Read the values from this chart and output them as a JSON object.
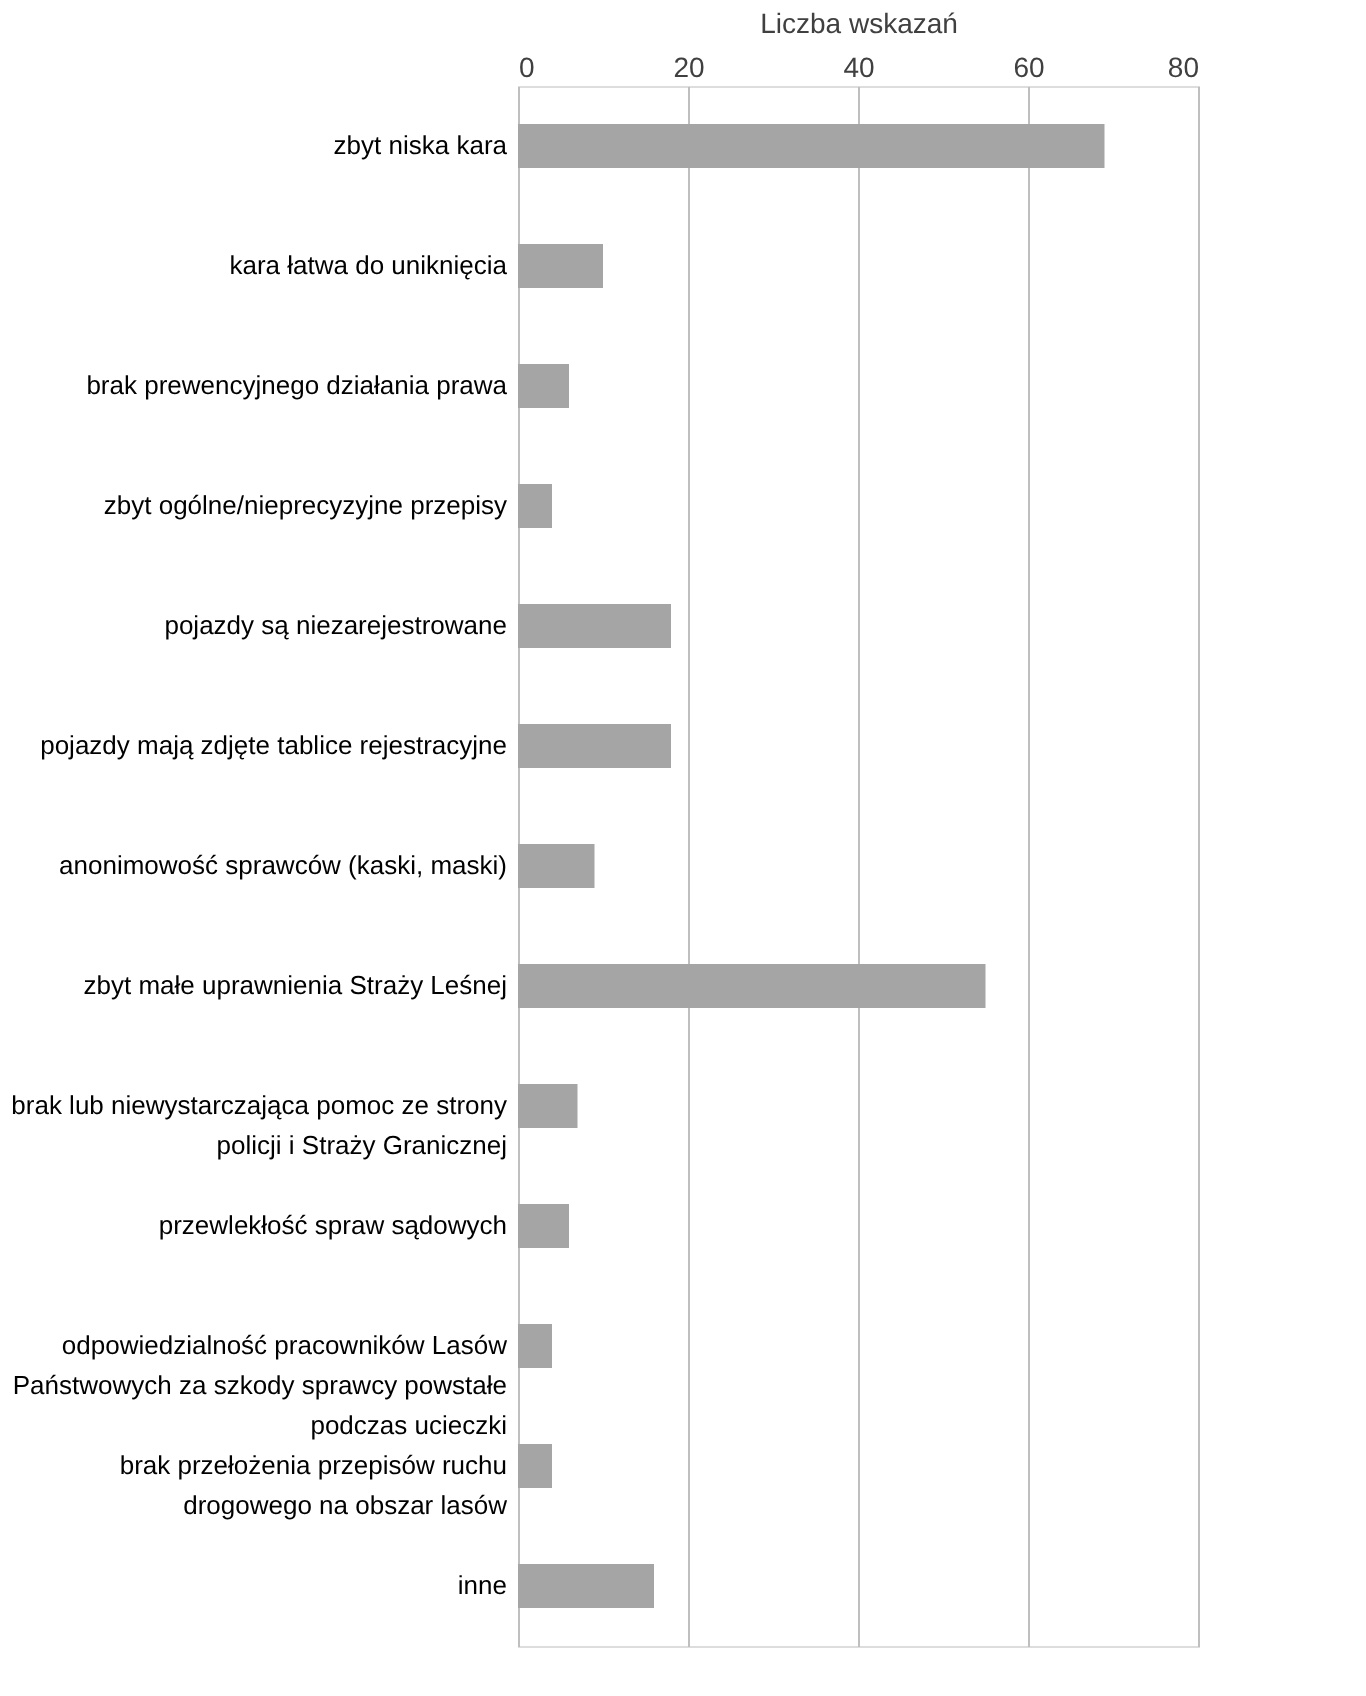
{
  "chart_data": {
    "type": "bar",
    "orientation": "horizontal",
    "xlabel": "Liczba wskazań",
    "categories": [
      "zbyt niska kara",
      "kara łatwa do uniknięcia",
      "brak prewencyjnego działania prawa",
      "zbyt ogólne/nieprecyzyjne przepisy",
      "pojazdy są niezarejestrowane",
      "pojazdy mają zdjęte tablice rejestracyjne",
      "anonimowość sprawców (kaski, maski)",
      "zbyt małe uprawnienia Straży Leśnej",
      "brak lub niewystarczająca pomoc ze strony policji i Straży Granicznej",
      "przewlekłość spraw sądowych",
      "odpowiedzialność pracowników Lasów Państwowych za szkody sprawcy powstałe podczas ucieczki",
      "brak przełożenia przepisów ruchu drogowego na obszar lasów",
      "inne"
    ],
    "values": [
      69,
      10,
      6,
      4,
      18,
      18,
      9,
      55,
      7,
      6,
      4,
      4,
      16
    ],
    "color": "#a5a5a5",
    "xlim": [
      0,
      80
    ],
    "xticks": [
      0,
      20,
      40,
      60,
      80
    ],
    "grid": "x"
  }
}
